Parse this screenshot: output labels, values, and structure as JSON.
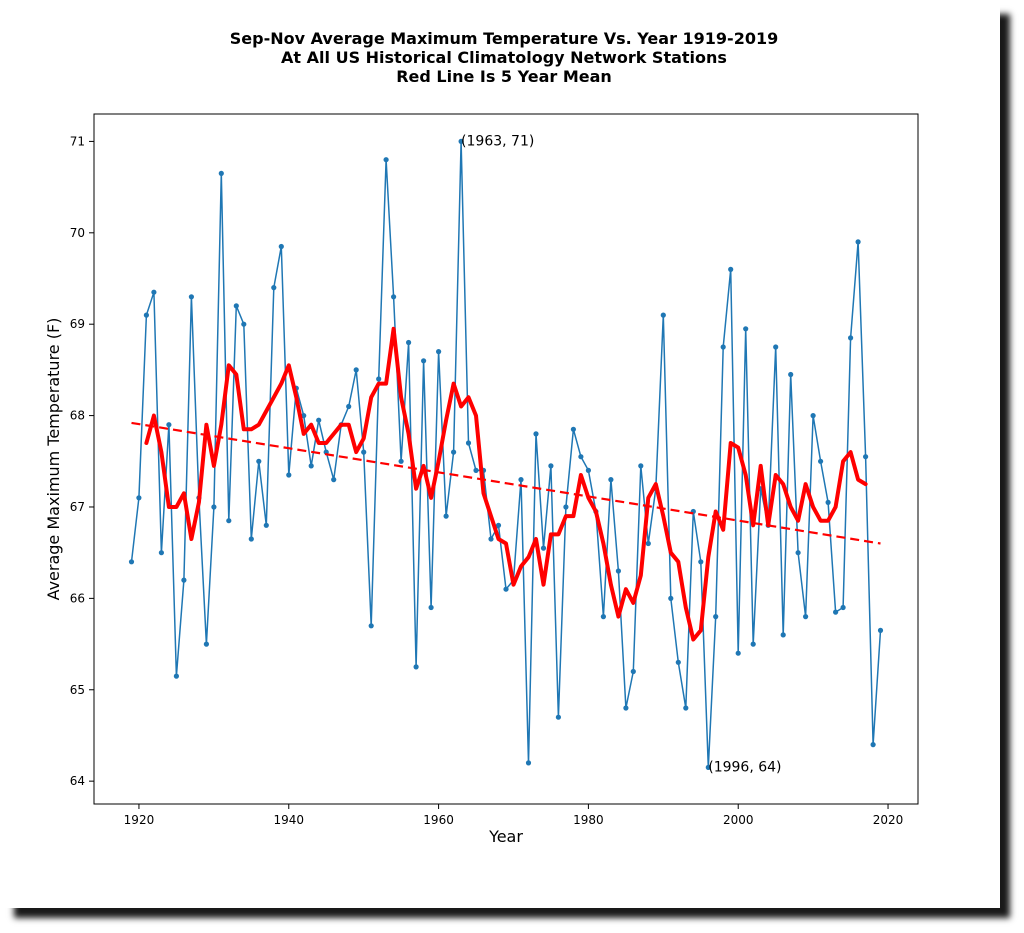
{
  "chart_data": {
    "type": "line",
    "title": [
      "Sep-Nov Average Maximum Temperature Vs. Year 1919-2019",
      "At All US Historical Climatology Network Stations",
      "Red Line Is 5 Year Mean"
    ],
    "xlabel": "Year",
    "ylabel": "Average Maximum Temperature (F)",
    "xlim": [
      1914,
      2024
    ],
    "ylim": [
      63.75,
      71.3
    ],
    "xticks": [
      1920,
      1940,
      1960,
      1980,
      2000,
      2020
    ],
    "yticks": [
      64,
      65,
      66,
      67,
      68,
      69,
      70,
      71
    ],
    "grid": false,
    "colors": {
      "annual": "#1f77b4",
      "mean": "#ff0000",
      "trend": "#ff0000"
    },
    "series": [
      {
        "x": [
          1919,
          1920,
          1921,
          1922,
          1923,
          1924,
          1925,
          1926,
          1927,
          1928,
          1929,
          1930,
          1931,
          1932,
          1933,
          1934,
          1935,
          1936,
          1937,
          1938,
          1939,
          1940,
          1941,
          1942,
          1943,
          1944,
          1945,
          1946,
          1947,
          1948,
          1949,
          1950,
          1951,
          1952,
          1953,
          1954,
          1955,
          1956,
          1957,
          1958,
          1959,
          1960,
          1961,
          1962,
          1963,
          1964,
          1965,
          1966,
          1967,
          1968,
          1969,
          1970,
          1971,
          1972,
          1973,
          1974,
          1975,
          1976,
          1977,
          1978,
          1979,
          1980,
          1981,
          1982,
          1983,
          1984,
          1985,
          1986,
          1987,
          1988,
          1989,
          1990,
          1991,
          1992,
          1993,
          1994,
          1995,
          1996,
          1997,
          1998,
          1999,
          2000,
          2001,
          2002,
          2003,
          2004,
          2005,
          2006,
          2007,
          2008,
          2009,
          2010,
          2011,
          2012,
          2013,
          2014,
          2015,
          2016,
          2017,
          2018,
          2019
        ],
        "values": [
          66.4,
          67.1,
          69.1,
          69.35,
          66.5,
          67.9,
          65.15,
          66.2,
          69.3,
          67.1,
          65.5,
          67.0,
          70.65,
          66.85,
          69.2,
          69.0,
          66.65,
          67.5,
          66.8,
          69.4,
          69.85,
          67.35,
          68.3,
          68.0,
          67.45,
          67.95,
          67.6,
          67.3,
          67.9,
          68.1,
          68.5,
          67.6,
          65.7,
          68.4,
          70.8,
          69.3,
          67.5,
          68.8,
          65.25,
          68.6,
          65.9,
          68.7,
          66.9,
          67.6,
          71.0,
          67.7,
          67.4,
          67.4,
          66.65,
          66.8,
          66.1,
          66.2,
          67.3,
          64.2,
          67.8,
          66.55,
          67.45,
          64.7,
          67.0,
          67.85,
          67.55,
          67.4,
          66.95,
          65.8,
          67.3,
          66.3,
          64.8,
          65.2,
          67.45,
          66.6,
          67.2,
          69.1,
          66.0,
          65.3,
          64.8,
          66.95,
          66.4,
          64.15,
          65.8,
          68.75,
          69.6,
          65.4,
          68.95,
          65.5,
          67.2,
          66.8,
          68.75,
          65.6,
          68.45,
          66.5,
          65.8,
          68.0,
          67.5,
          67.05,
          65.85,
          65.9,
          68.85,
          69.9,
          67.55,
          64.4,
          65.65
        ]
      },
      {
        "x": [
          1921,
          1922,
          1923,
          1924,
          1925,
          1926,
          1927,
          1928,
          1929,
          1930,
          1931,
          1932,
          1933,
          1934,
          1935,
          1936,
          1937,
          1938,
          1939,
          1940,
          1941,
          1942,
          1943,
          1944,
          1945,
          1946,
          1947,
          1948,
          1949,
          1950,
          1951,
          1952,
          1953,
          1954,
          1955,
          1956,
          1957,
          1958,
          1959,
          1960,
          1961,
          1962,
          1963,
          1964,
          1965,
          1966,
          1967,
          1968,
          1969,
          1970,
          1971,
          1972,
          1973,
          1974,
          1975,
          1976,
          1977,
          1978,
          1979,
          1980,
          1981,
          1982,
          1983,
          1984,
          1985,
          1986,
          1987,
          1988,
          1989,
          1990,
          1991,
          1992,
          1993,
          1994,
          1995,
          1996,
          1997,
          1998,
          1999,
          2000,
          2001,
          2002,
          2003,
          2004,
          2005,
          2006,
          2007,
          2008,
          2009,
          2010,
          2011,
          2012,
          2013,
          2014,
          2015,
          2016,
          2017
        ],
        "values": [
          67.7,
          68.0,
          67.6,
          67.0,
          67.0,
          67.15,
          66.65,
          67.05,
          67.9,
          67.45,
          67.9,
          68.55,
          68.45,
          67.85,
          67.85,
          67.9,
          68.05,
          68.2,
          68.35,
          68.55,
          68.2,
          67.8,
          67.9,
          67.7,
          67.7,
          67.8,
          67.9,
          67.9,
          67.6,
          67.75,
          68.2,
          68.35,
          68.35,
          68.95,
          68.2,
          67.8,
          67.2,
          67.45,
          67.1,
          67.5,
          67.95,
          68.35,
          68.1,
          68.2,
          68.0,
          67.15,
          66.9,
          66.65,
          66.6,
          66.15,
          66.35,
          66.45,
          66.65,
          66.15,
          66.7,
          66.7,
          66.9,
          66.9,
          67.35,
          67.1,
          66.95,
          66.6,
          66.15,
          65.8,
          66.1,
          65.95,
          66.25,
          67.1,
          67.25,
          66.9,
          66.5,
          66.4,
          65.9,
          65.55,
          65.65,
          66.45,
          66.95,
          66.75,
          67.7,
          67.65,
          67.35,
          66.8,
          67.45,
          66.8,
          67.35,
          67.25,
          67.0,
          66.85,
          67.25,
          67.0,
          66.85,
          66.85,
          67.0,
          67.5,
          67.6,
          67.3,
          67.25
        ]
      },
      {
        "x": [
          1919,
          2019
        ],
        "values": [
          67.92,
          66.6
        ]
      }
    ],
    "annotations": [
      {
        "text": "(1963, 71)",
        "x": 1963,
        "y": 71.0
      },
      {
        "text": "(1996, 64)",
        "x": 1996,
        "y": 64.15
      }
    ]
  }
}
